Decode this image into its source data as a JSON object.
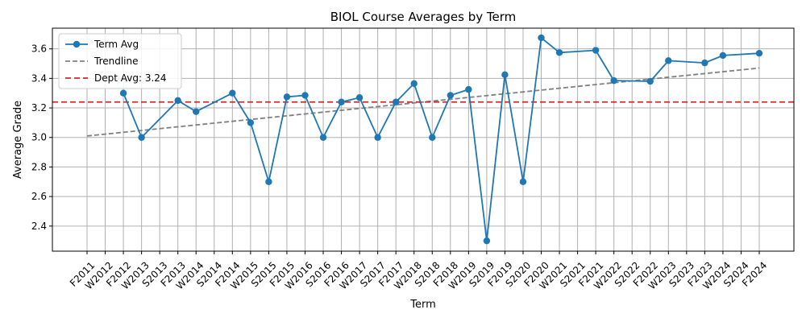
{
  "chart_data": {
    "type": "line",
    "title": "BIOL Course Averages by Term",
    "xlabel": "Term",
    "ylabel": "Average Grade",
    "ylim": [
      2.23,
      3.74
    ],
    "yticks": [
      2.4,
      2.6,
      2.8,
      3.0,
      3.2,
      3.4,
      3.6
    ],
    "categories": [
      "F2011",
      "W2012",
      "F2012",
      "W2013",
      "S2013",
      "F2013",
      "W2014",
      "S2014",
      "F2014",
      "W2015",
      "S2015",
      "F2015",
      "W2016",
      "S2016",
      "F2016",
      "W2017",
      "S2017",
      "F2017",
      "W2018",
      "S2018",
      "F2018",
      "W2019",
      "S2019",
      "F2019",
      "S2020",
      "F2020",
      "W2021",
      "S2021",
      "F2021",
      "W2022",
      "S2022",
      "F2022",
      "W2023",
      "S2023",
      "F2023",
      "W2024",
      "S2024",
      "F2024"
    ],
    "grid": true,
    "legend_position": "top-left",
    "series": [
      {
        "name": "Term Avg",
        "style": "line-with-markers",
        "color": "#1f77b4",
        "points": [
          {
            "x": "F2012",
            "y": 3.3
          },
          {
            "x": "W2013",
            "y": 3.0
          },
          {
            "x": "F2013",
            "y": 3.25
          },
          {
            "x": "W2014",
            "y": 3.175
          },
          {
            "x": "F2014",
            "y": 3.3
          },
          {
            "x": "W2015",
            "y": 3.1
          },
          {
            "x": "S2015",
            "y": 2.7
          },
          {
            "x": "F2015",
            "y": 3.275
          },
          {
            "x": "W2016",
            "y": 3.285
          },
          {
            "x": "S2016",
            "y": 3.0
          },
          {
            "x": "F2016",
            "y": 3.24
          },
          {
            "x": "W2017",
            "y": 3.27
          },
          {
            "x": "S2017",
            "y": 3.0
          },
          {
            "x": "F2017",
            "y": 3.24
          },
          {
            "x": "W2018",
            "y": 3.365
          },
          {
            "x": "S2018",
            "y": 3.0
          },
          {
            "x": "F2018",
            "y": 3.285
          },
          {
            "x": "W2019",
            "y": 3.325
          },
          {
            "x": "S2019",
            "y": 2.3
          },
          {
            "x": "F2019",
            "y": 3.425
          },
          {
            "x": "S2020",
            "y": 2.7
          },
          {
            "x": "F2020",
            "y": 3.675
          },
          {
            "x": "W2021",
            "y": 3.575
          },
          {
            "x": "F2021",
            "y": 3.59
          },
          {
            "x": "W2022",
            "y": 3.385
          },
          {
            "x": "F2022",
            "y": 3.38
          },
          {
            "x": "W2023",
            "y": 3.52
          },
          {
            "x": "F2023",
            "y": 3.505
          },
          {
            "x": "W2024",
            "y": 3.555
          },
          {
            "x": "F2024",
            "y": 3.57
          }
        ]
      },
      {
        "name": "Trendline",
        "style": "dashed",
        "color": "#808080",
        "points": [
          {
            "x": "F2011",
            "y": 3.01
          },
          {
            "x": "F2024",
            "y": 3.47
          }
        ]
      },
      {
        "name": "Dept Avg: 3.24",
        "style": "dashed-horizontal",
        "color": "#d62728",
        "y": 3.24
      }
    ]
  }
}
